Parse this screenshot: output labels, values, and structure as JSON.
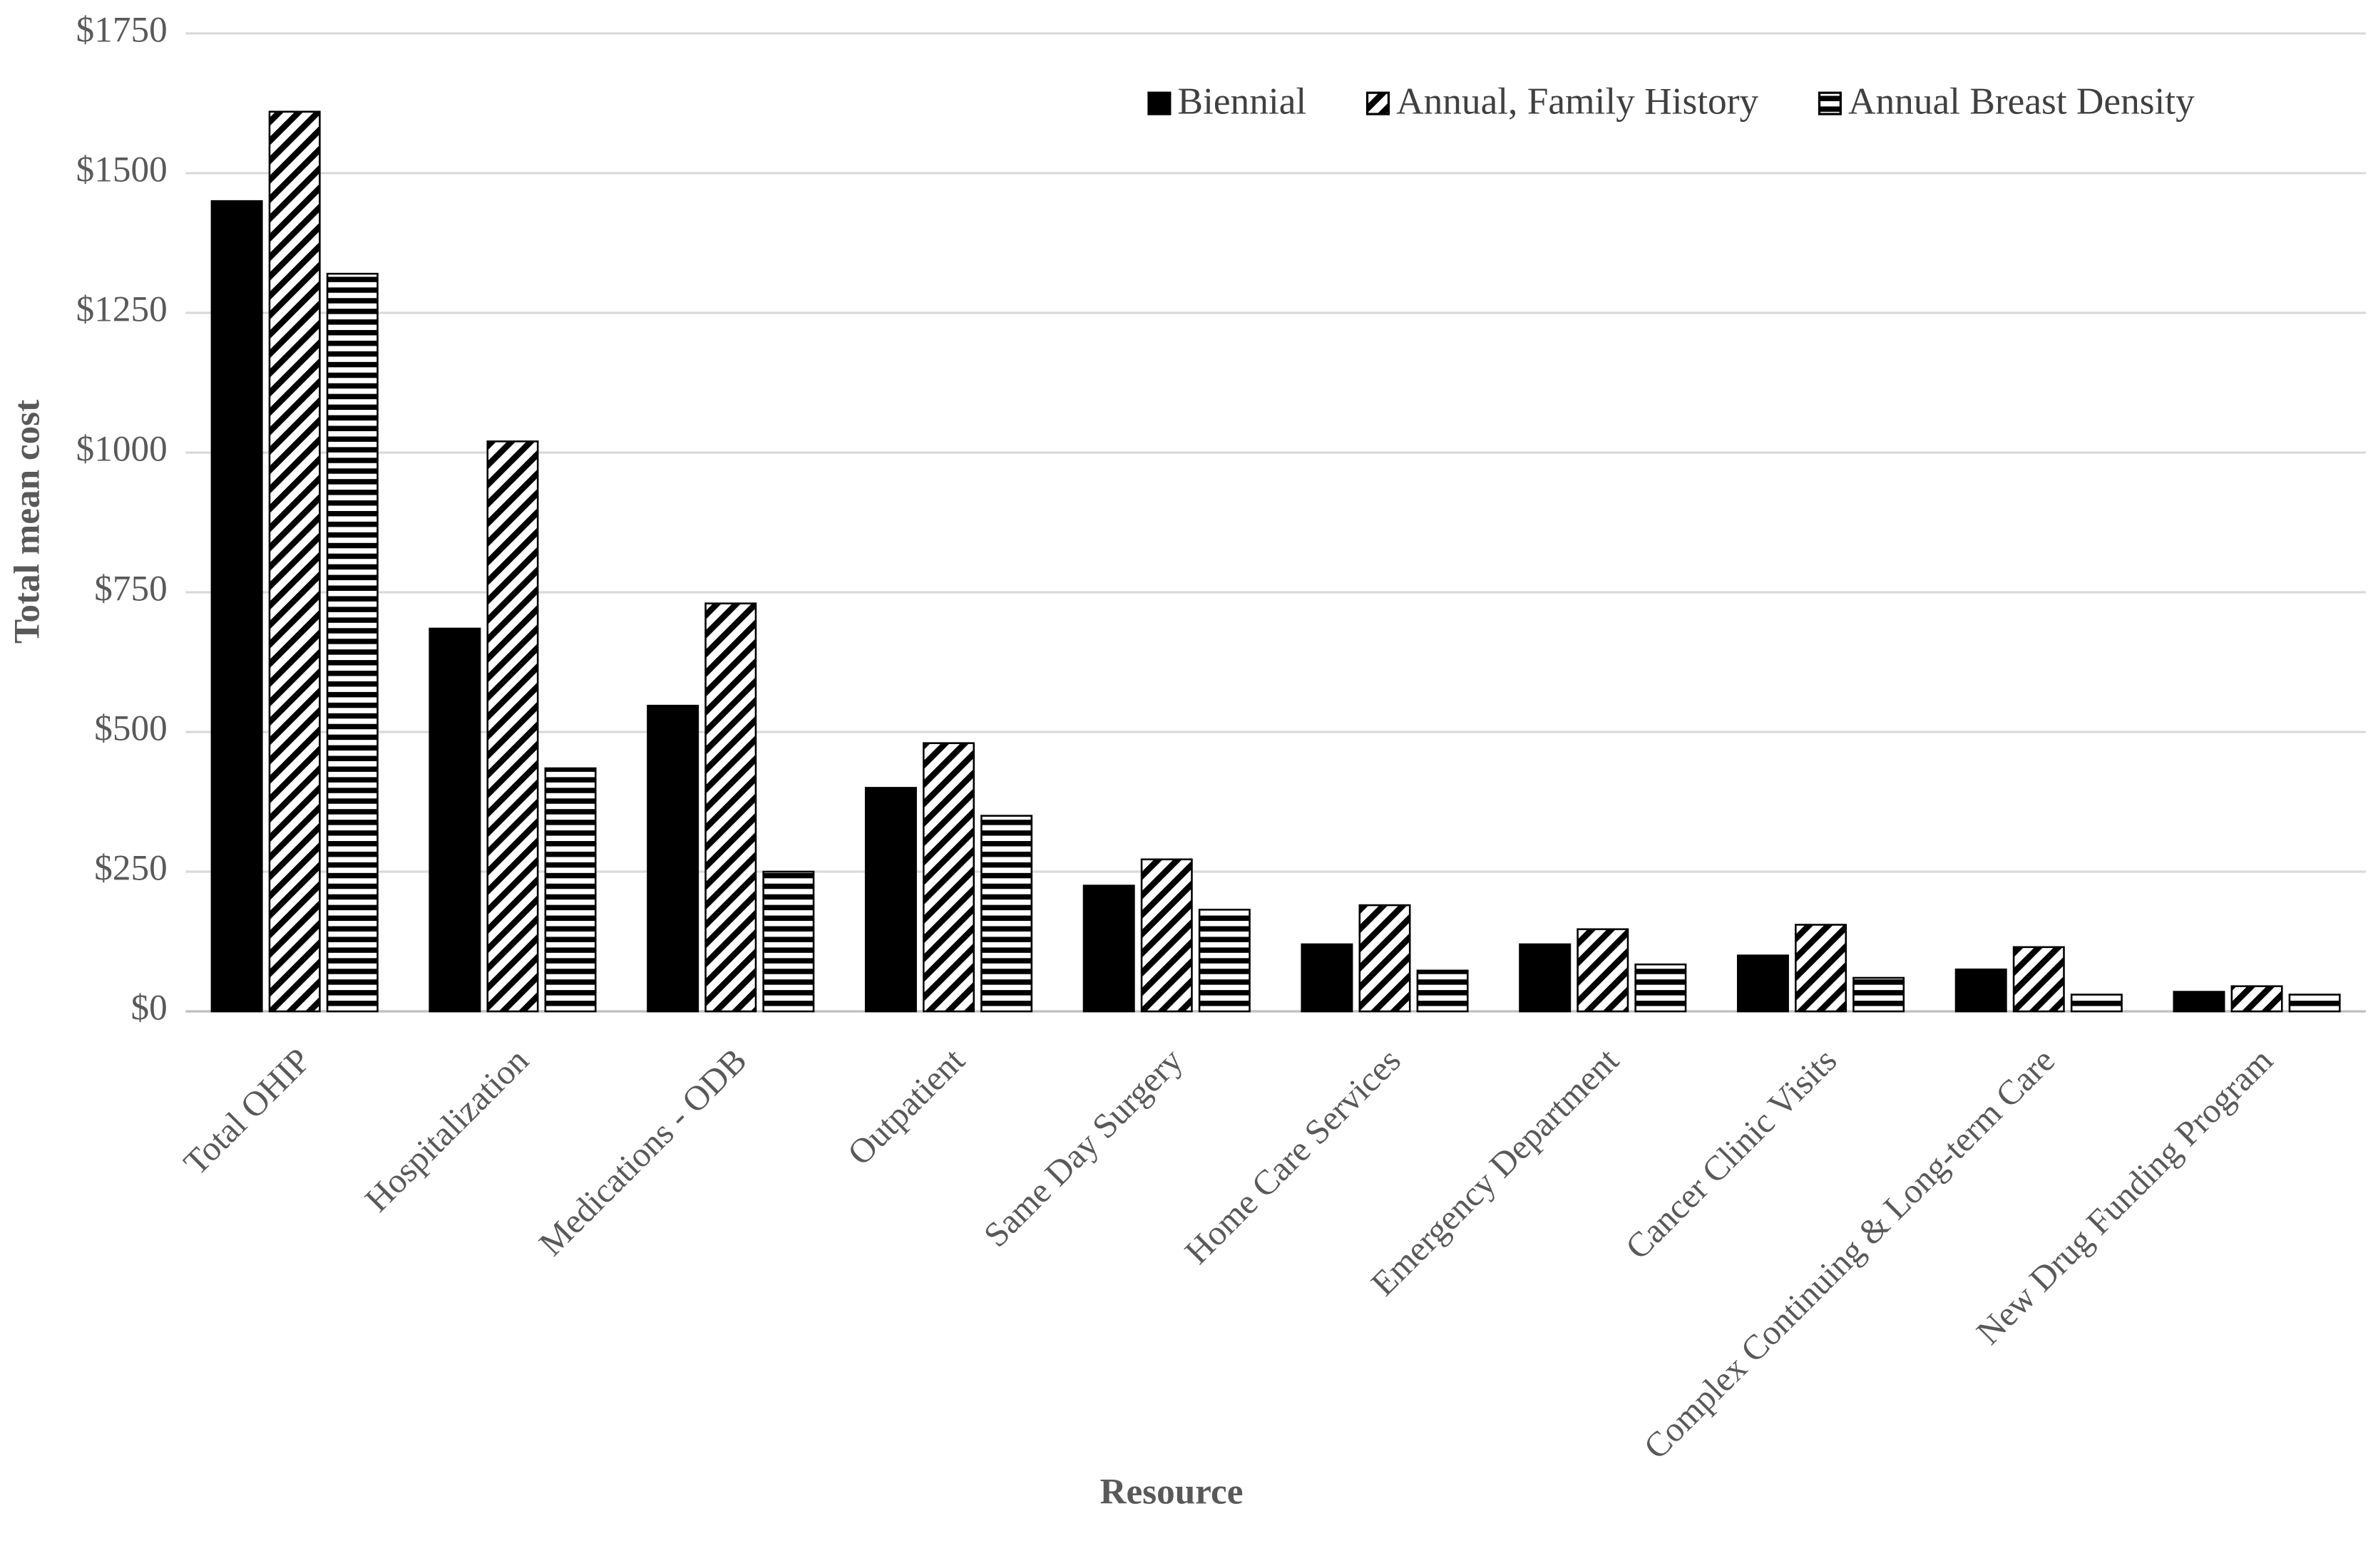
{
  "chart_data": {
    "type": "bar",
    "x_label": "Resource",
    "y_label": "Total mean cost",
    "categories": [
      "Total OHIP",
      "Hospitalization",
      "Medications - ODB",
      "Outpatient",
      "Same Day Surgery",
      "Home Care Services",
      "Emergency Department",
      "Cancer Clinic Visits",
      "Complex Continuing & Long-term Care",
      "New Drug Funding Program"
    ],
    "series": [
      {
        "name": "Biennial",
        "color": "#000000",
        "hatch": "solid",
        "values": [
          1450,
          685,
          547,
          400,
          225,
          120,
          120,
          100,
          75,
          35
        ]
      },
      {
        "name": "Annual, Family History",
        "color": "#000000",
        "hatch": "diagonal",
        "values": [
          1610,
          1020,
          730,
          480,
          272,
          190,
          147,
          155,
          115,
          45
        ]
      },
      {
        "name": "Annual Breast Density",
        "color": "#000000",
        "hatch": "horizontal",
        "values": [
          1320,
          435,
          250,
          350,
          182,
          73,
          84,
          60,
          30,
          30
        ]
      }
    ],
    "ylim": [
      0,
      1750
    ],
    "yticks": [
      {
        "value": 0,
        "label": "$0"
      },
      {
        "value": 250,
        "label": "$250"
      },
      {
        "value": 500,
        "label": "$500"
      },
      {
        "value": 750,
        "label": "$750"
      },
      {
        "value": 1000,
        "label": "$1000"
      },
      {
        "value": 1250,
        "label": "$1250"
      },
      {
        "value": 1500,
        "label": "$1500"
      },
      {
        "value": 1750,
        "label": "$1750"
      }
    ],
    "grid": true,
    "legend": "top-right"
  }
}
